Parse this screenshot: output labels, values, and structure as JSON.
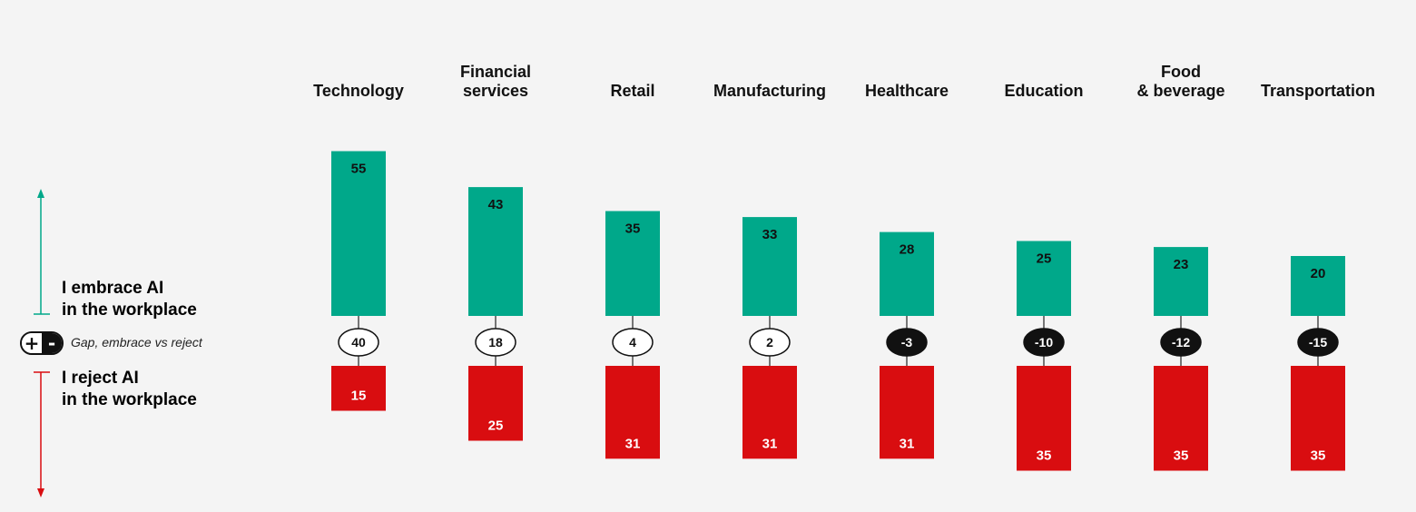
{
  "legend": {
    "embrace_line1": "I embrace AI",
    "embrace_line2": "in the workplace",
    "reject_line1": "I reject AI",
    "reject_line2": "in the workplace",
    "gap_label": "Gap, embrace vs reject",
    "plus_symbol": "+",
    "minus_symbol": "-"
  },
  "colors": {
    "embrace": "#00a88a",
    "reject": "#d90d10",
    "gap_positive_fill": "#ffffff",
    "gap_negative_fill": "#111111",
    "background": "#f4f4f4"
  },
  "chart_data": {
    "type": "bar",
    "categories": [
      [
        "Technology"
      ],
      [
        "Financial",
        "services"
      ],
      [
        "Retail"
      ],
      [
        "Manufacturing"
      ],
      [
        "Healthcare"
      ],
      [
        "Education"
      ],
      [
        "Food",
        "& beverage"
      ],
      [
        "Transportation"
      ]
    ],
    "series": [
      {
        "name": "I embrace AI in the workplace",
        "values": [
          55,
          43,
          35,
          33,
          28,
          25,
          23,
          20
        ]
      },
      {
        "name": "I reject AI in the workplace",
        "values": [
          15,
          25,
          31,
          31,
          31,
          35,
          35,
          35
        ]
      },
      {
        "name": "Gap, embrace vs reject",
        "values": [
          40,
          18,
          4,
          2,
          -3,
          -10,
          -12,
          -15
        ]
      }
    ]
  }
}
